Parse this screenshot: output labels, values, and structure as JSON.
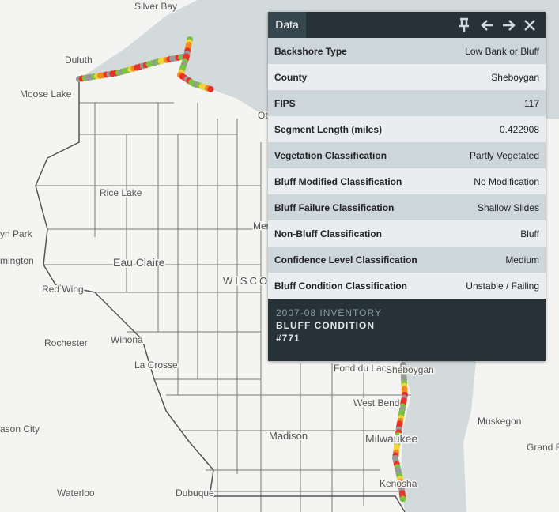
{
  "map": {
    "labels": [
      "Silver Bay",
      "Duluth",
      "Moose Lake",
      "Rice Lake",
      "yn Park",
      "mington",
      "Eau Claire",
      "Red Wing",
      "Rochester",
      "Winona",
      "La Crosse",
      "WISCO",
      "Ott",
      "Mer",
      "Fond du Lac",
      "Sheboygan",
      "West Bend",
      "Milwaukee",
      "Madison",
      "ason City",
      "Waterloo",
      "Dubuque",
      "Kenosha",
      "Muskegon",
      "Grand R"
    ]
  },
  "popup": {
    "title": "Data",
    "rows": [
      {
        "label": "Backshore Type",
        "value": "Low Bank or Bluff"
      },
      {
        "label": "County",
        "value": "Sheboygan"
      },
      {
        "label": "FIPS",
        "value": "117"
      },
      {
        "label": "Segment Length (miles)",
        "value": "0.422908"
      },
      {
        "label": "Vegetation Classification",
        "value": "Partly Vegetated"
      },
      {
        "label": "Bluff Modified Classification",
        "value": "No Modification"
      },
      {
        "label": "Bluff Failure Classification",
        "value": "Shallow Slides"
      },
      {
        "label": "Non-Bluff Classification",
        "value": "Bluff"
      },
      {
        "label": "Confidence Level Classification",
        "value": "Medium"
      },
      {
        "label": "Bluff Condition Classification",
        "value": "Unstable / Failing"
      }
    ],
    "footer": [
      "2007-08 INVENTORY",
      "BLUFF CONDITION",
      "#771"
    ]
  }
}
